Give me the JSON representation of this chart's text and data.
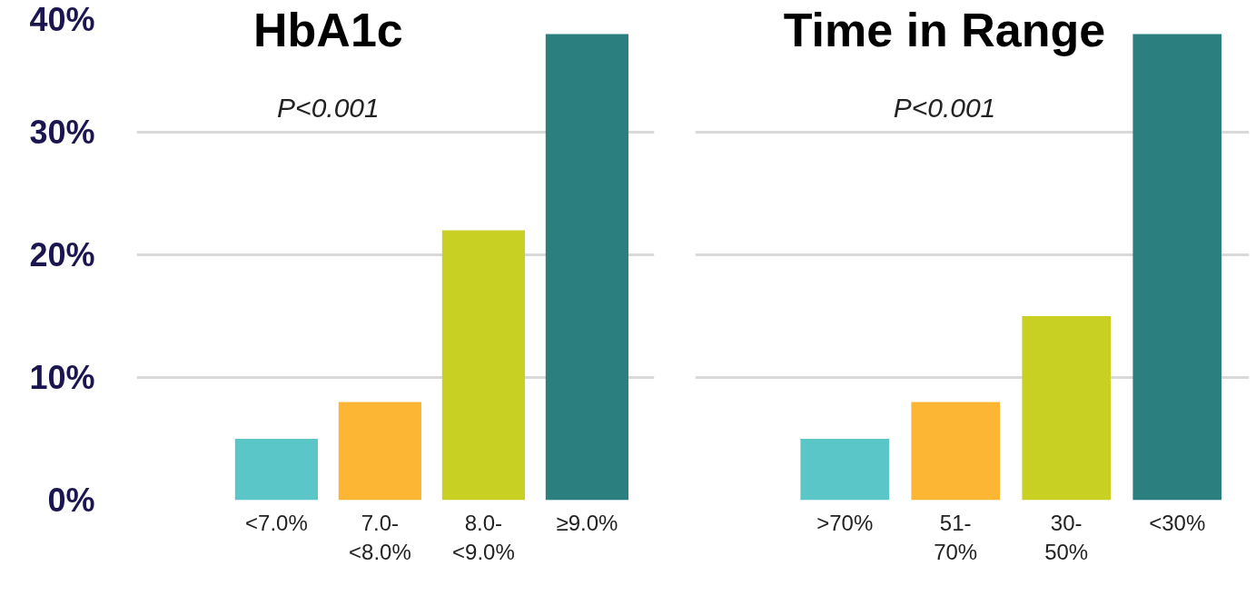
{
  "chart_data": [
    {
      "type": "bar",
      "title": "HbA1c",
      "annotations": [
        "P<0.001"
      ],
      "categories": [
        "<7.0%",
        "7.0-\n<8.0%",
        "8.0-\n<9.0%",
        "≥9.0%"
      ],
      "values": [
        5,
        8,
        22,
        38
      ],
      "colors": [
        "#5bc6c8",
        "#fdb634",
        "#c8d024",
        "#2b7f7f"
      ],
      "ylim": [
        0,
        40
      ],
      "yticks": [
        {
          "value": 0,
          "label": "0%"
        },
        {
          "value": 10,
          "label": "10%"
        },
        {
          "value": 20,
          "label": "20%"
        },
        {
          "value": 30,
          "label": "30%"
        },
        {
          "value": 40,
          "label": "40%"
        }
      ],
      "grid": "y"
    },
    {
      "type": "bar",
      "title": "Time in Range",
      "annotations": [
        "P<0.001"
      ],
      "categories": [
        ">70%",
        "51-\n70%",
        "30-\n50%",
        "<30%"
      ],
      "values": [
        5,
        8,
        15,
        38
      ],
      "colors": [
        "#5bc6c8",
        "#fdb634",
        "#c8d024",
        "#2b7f7f"
      ],
      "ylim": [
        0,
        40
      ],
      "yticks": [
        0,
        10,
        20,
        30,
        40
      ],
      "grid": "y",
      "tick_labels": "x"
    }
  ]
}
